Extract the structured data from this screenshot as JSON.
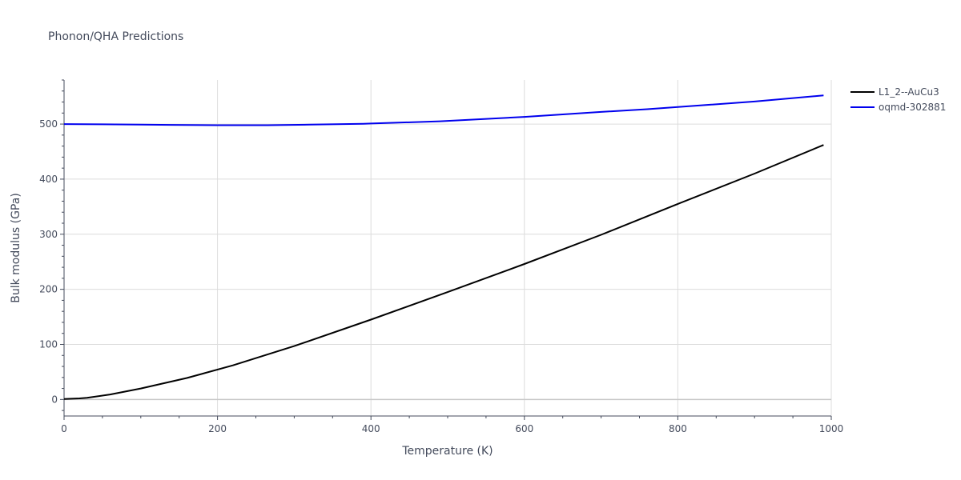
{
  "chart_data": {
    "type": "line",
    "title": "Phonon/QHA Predictions",
    "xlabel": "Temperature (K)",
    "ylabel": "Bulk modulus (GPa)",
    "xlim": [
      0,
      1000
    ],
    "ylim": [
      -30,
      580
    ],
    "xticks": [
      0,
      200,
      400,
      600,
      800,
      1000
    ],
    "xtick_labels": [
      "0",
      "200",
      "400",
      "600",
      "800",
      "1000"
    ],
    "yticks": [
      0,
      100,
      200,
      300,
      400,
      500
    ],
    "ytick_labels": [
      "0",
      "100",
      "200",
      "300",
      "400",
      "500"
    ],
    "grid": true,
    "legend_position": "top-right",
    "series": [
      {
        "name": "L1_2--AuCu3",
        "color": "#000000",
        "x": [
          0,
          20,
          30,
          60,
          100,
          160,
          220,
          300,
          400,
          500,
          600,
          700,
          800,
          900,
          990
        ],
        "y": [
          1,
          2,
          3,
          9,
          20,
          39,
          62,
          97,
          145,
          195,
          246,
          299,
          355,
          410,
          462
        ]
      },
      {
        "name": "oqmd-302881",
        "color": "#0000ee",
        "x": [
          0,
          50,
          100,
          140,
          200,
          265,
          320,
          390,
          400,
          490,
          600,
          700,
          760,
          820,
          900,
          990
        ],
        "y": [
          500,
          499.5,
          499,
          498.5,
          498,
          498,
          499,
          500.5,
          501,
          505,
          513,
          522,
          527,
          533,
          541,
          552
        ]
      }
    ]
  }
}
